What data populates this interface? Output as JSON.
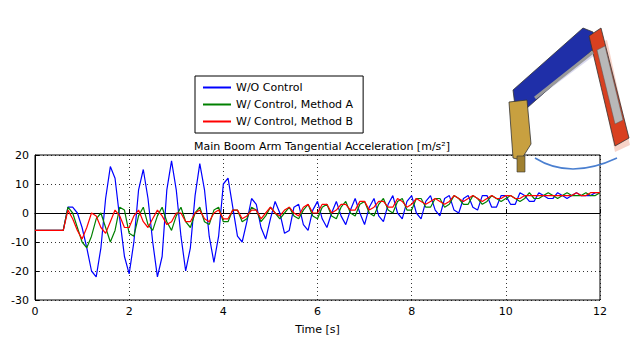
{
  "chart_data": {
    "type": "line",
    "title": "Main Boom Arm Tangential Acceleration [m/s²]",
    "x_label": "Time [s]",
    "x": [
      0,
      0.1,
      0.2,
      0.3,
      0.4,
      0.5,
      0.6,
      0.7,
      0.8,
      0.9,
      1,
      1.1,
      1.2,
      1.3,
      1.4,
      1.5,
      1.6,
      1.7,
      1.8,
      1.9,
      2,
      2.1,
      2.2,
      2.3,
      2.4,
      2.5,
      2.6,
      2.7,
      2.8,
      2.9,
      3,
      3.1,
      3.2,
      3.3,
      3.4,
      3.5,
      3.6,
      3.7,
      3.8,
      3.9,
      4,
      4.1,
      4.2,
      4.3,
      4.4,
      4.5,
      4.6,
      4.7,
      4.8,
      4.9,
      5,
      5.1,
      5.2,
      5.3,
      5.4,
      5.5,
      5.6,
      5.7,
      5.8,
      5.9,
      6,
      6.1,
      6.2,
      6.3,
      6.4,
      6.5,
      6.6,
      6.7,
      6.8,
      6.9,
      7,
      7.1,
      7.2,
      7.3,
      7.4,
      7.5,
      7.6,
      7.7,
      7.8,
      7.9,
      8,
      8.1,
      8.2,
      8.3,
      8.4,
      8.5,
      8.6,
      8.7,
      8.8,
      8.9,
      9,
      9.1,
      9.2,
      9.3,
      9.4,
      9.5,
      9.6,
      9.7,
      9.8,
      9.9,
      10,
      10.1,
      10.2,
      10.3,
      10.4,
      10.5,
      10.6,
      10.7,
      10.8,
      10.9,
      11,
      11.1,
      11.2,
      11.3,
      11.4,
      11.5,
      11.6,
      11.7,
      11.8,
      11.9,
      12
    ],
    "series": [
      {
        "name": "W/O Control",
        "color": "#0000ff",
        "values": [
          -6,
          -6,
          -6,
          -6,
          -6,
          -6,
          -6,
          2,
          2,
          0,
          -5,
          -12,
          -20,
          -22,
          -12,
          5,
          16,
          12,
          -2,
          -15,
          -21,
          -10,
          8,
          15,
          5,
          -10,
          -22,
          -15,
          8,
          18,
          8,
          -8,
          -20,
          -12,
          6,
          17,
          8,
          -8,
          -17,
          -8,
          10,
          12,
          2,
          -8,
          -10,
          -3,
          5,
          3,
          -5,
          -9,
          -2,
          4,
          0,
          -7,
          -6,
          2,
          3,
          -4,
          -6,
          1,
          4,
          -2,
          -5,
          0,
          4,
          -1,
          -4,
          1,
          5,
          0,
          -4,
          2,
          5,
          -1,
          -3,
          3,
          6,
          0,
          -2,
          4,
          6,
          0,
          -2,
          4,
          6,
          1,
          -1,
          5,
          6,
          1,
          0,
          5,
          6,
          2,
          1,
          6,
          6,
          2,
          2,
          6,
          6,
          3,
          3,
          7,
          6,
          4,
          4,
          7,
          6,
          5,
          5,
          7,
          6,
          5,
          6,
          7,
          6,
          6,
          6,
          7,
          7
        ]
      },
      {
        "name": "W/ Control, Method A",
        "color": "#008000",
        "values": [
          -6,
          -6,
          -6,
          -6,
          -6,
          -6,
          -6,
          2,
          0,
          -5,
          -10,
          -12,
          -8,
          -2,
          0,
          -5,
          -10,
          -6,
          2,
          1,
          -7,
          -8,
          -1,
          2,
          -4,
          -6,
          -1,
          2,
          -3,
          -6,
          -1,
          2,
          -3,
          -5,
          0,
          2,
          -3,
          -4,
          1,
          2,
          -3,
          -3,
          1,
          1,
          -3,
          -2,
          2,
          1,
          -3,
          -1,
          2,
          0,
          -2,
          0,
          2,
          -1,
          -2,
          1,
          3,
          -1,
          -2,
          2,
          3,
          -1,
          -2,
          2,
          4,
          0,
          -1,
          3,
          4,
          0,
          -1,
          3,
          5,
          1,
          0,
          4,
          5,
          1,
          1,
          5,
          5,
          2,
          2,
          5,
          5,
          2,
          3,
          6,
          5,
          3,
          3,
          6,
          5,
          3,
          4,
          6,
          5,
          4,
          5,
          6,
          5,
          4,
          5,
          7,
          5,
          5,
          6,
          7,
          6,
          5,
          6,
          7,
          6,
          6,
          6,
          7,
          6,
          6,
          7
        ]
      },
      {
        "name": "W/ Control, Method B",
        "color": "#ff0000",
        "values": [
          -6,
          -6,
          -6,
          -6,
          -6,
          -6,
          -6,
          1,
          -2,
          -6,
          -9,
          -5,
          0,
          -1,
          -5,
          -7,
          -3,
          1,
          -1,
          -5,
          -5,
          -1,
          1,
          -3,
          -5,
          -2,
          1,
          -1,
          -4,
          -3,
          0,
          0,
          -3,
          -3,
          0,
          1,
          -2,
          -3,
          0,
          1,
          -2,
          -2,
          1,
          1,
          -2,
          -1,
          1,
          1,
          -2,
          0,
          2,
          0,
          -1,
          1,
          2,
          0,
          -1,
          2,
          3,
          0,
          0,
          3,
          3,
          0,
          1,
          3,
          3,
          1,
          1,
          4,
          4,
          1,
          2,
          4,
          4,
          2,
          2,
          5,
          4,
          2,
          3,
          5,
          4,
          3,
          4,
          5,
          4,
          3,
          4,
          6,
          5,
          4,
          5,
          6,
          5,
          4,
          5,
          6,
          5,
          5,
          6,
          6,
          5,
          5,
          6,
          6,
          6,
          6,
          6,
          6,
          6,
          6,
          6,
          6,
          6,
          7,
          6,
          6,
          7,
          7,
          7
        ]
      }
    ],
    "xlim": [
      0,
      12
    ],
    "xticks": [
      0,
      2,
      4,
      6,
      8,
      10,
      12
    ],
    "ylim": [
      -30,
      20
    ],
    "yticks": [
      -30,
      -20,
      -10,
      0,
      10,
      20
    ],
    "grid": true,
    "legend": "top left"
  }
}
